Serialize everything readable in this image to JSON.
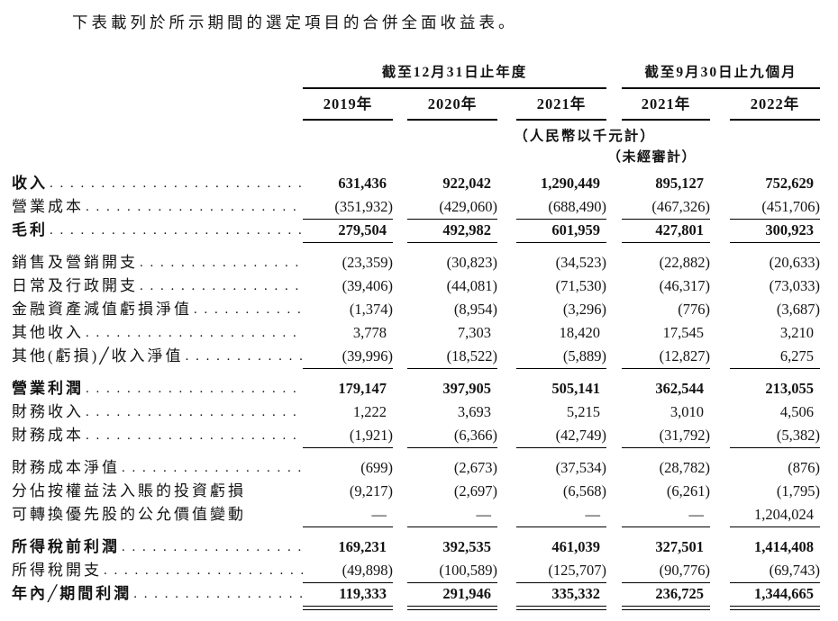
{
  "intro": "下表載列於所示期間的選定項目的合併全面收益表。",
  "table": {
    "group_headers": [
      {
        "label": "截至12月31日止年度",
        "colspan": 3
      },
      {
        "label": "截至9月30日止九個月",
        "colspan": 2
      }
    ],
    "year_headers": [
      "2019年",
      "2020年",
      "2021年",
      "2021年",
      "2022年"
    ],
    "currency_note": "（人民幣以千元計）",
    "unaudited_note": "（未經審計）",
    "rows": [
      {
        "label": "收入",
        "bold": true,
        "values": [
          "631,436",
          "922,042",
          "1,290,449",
          "895,127",
          "752,629"
        ],
        "rule": "none"
      },
      {
        "label": "營業成本",
        "bold": false,
        "values": [
          "(351,932)",
          "(429,060)",
          "(688,490)",
          "(467,326)",
          "(451,706)"
        ],
        "rule": "single"
      },
      {
        "label": "毛利",
        "bold": true,
        "values": [
          "279,504",
          "492,982",
          "601,959",
          "427,801",
          "300,923"
        ],
        "rule": "single",
        "gap_after": true
      },
      {
        "label": "銷售及營銷開支",
        "bold": false,
        "values": [
          "(23,359)",
          "(30,823)",
          "(34,523)",
          "(22,882)",
          "(20,633)"
        ],
        "rule": "none"
      },
      {
        "label": "日常及行政開支",
        "bold": false,
        "values": [
          "(39,406)",
          "(44,081)",
          "(71,530)",
          "(46,317)",
          "(73,033)"
        ],
        "rule": "none"
      },
      {
        "label": "金融資產減值虧損淨值",
        "bold": false,
        "values": [
          "(1,374)",
          "(8,954)",
          "(3,296)",
          "(776)",
          "(3,687)"
        ],
        "rule": "none"
      },
      {
        "label": "其他收入",
        "bold": false,
        "values": [
          "3,778",
          "7,303",
          "18,420",
          "17,545",
          "3,210"
        ],
        "rule": "none"
      },
      {
        "label": "其他(虧損)╱收入淨值",
        "bold": false,
        "values": [
          "(39,996)",
          "(18,522)",
          "(5,889)",
          "(12,827)",
          "6,275"
        ],
        "rule": "single",
        "gap_after": true
      },
      {
        "label": "營業利潤",
        "bold": true,
        "values": [
          "179,147",
          "397,905",
          "505,141",
          "362,544",
          "213,055"
        ],
        "rule": "none"
      },
      {
        "label": "財務收入",
        "bold": false,
        "values": [
          "1,222",
          "3,693",
          "5,215",
          "3,010",
          "4,506"
        ],
        "rule": "none"
      },
      {
        "label": "財務成本",
        "bold": false,
        "values": [
          "(1,921)",
          "(6,366)",
          "(42,749)",
          "(31,792)",
          "(5,382)"
        ],
        "rule": "single",
        "gap_after": true
      },
      {
        "label": "財務成本淨值",
        "bold": false,
        "values": [
          "(699)",
          "(2,673)",
          "(37,534)",
          "(28,782)",
          "(876)"
        ],
        "rule": "none"
      },
      {
        "label": "分佔按權益法入賬的投資虧損",
        "bold": false,
        "values": [
          "(9,217)",
          "(2,697)",
          "(6,568)",
          "(6,261)",
          "(1,795)"
        ],
        "rule": "none",
        "no_dots": true
      },
      {
        "label": "可轉換優先股的公允價值變動",
        "bold": false,
        "values": [
          "—",
          "—",
          "—",
          "—",
          "1,204,024"
        ],
        "rule": "single",
        "gap_after": true,
        "no_dots": true
      },
      {
        "label": "所得稅前利潤",
        "bold": true,
        "values": [
          "169,231",
          "392,535",
          "461,039",
          "327,501",
          "1,414,408"
        ],
        "rule": "none"
      },
      {
        "label": "所得稅開支",
        "bold": false,
        "values": [
          "(49,898)",
          "(100,589)",
          "(125,707)",
          "(90,776)",
          "(69,743)"
        ],
        "rule": "single"
      },
      {
        "label": "年內╱期間利潤",
        "bold": true,
        "values": [
          "119,333",
          "291,946",
          "335,332",
          "236,725",
          "1,344,665"
        ],
        "rule": "double"
      }
    ]
  }
}
